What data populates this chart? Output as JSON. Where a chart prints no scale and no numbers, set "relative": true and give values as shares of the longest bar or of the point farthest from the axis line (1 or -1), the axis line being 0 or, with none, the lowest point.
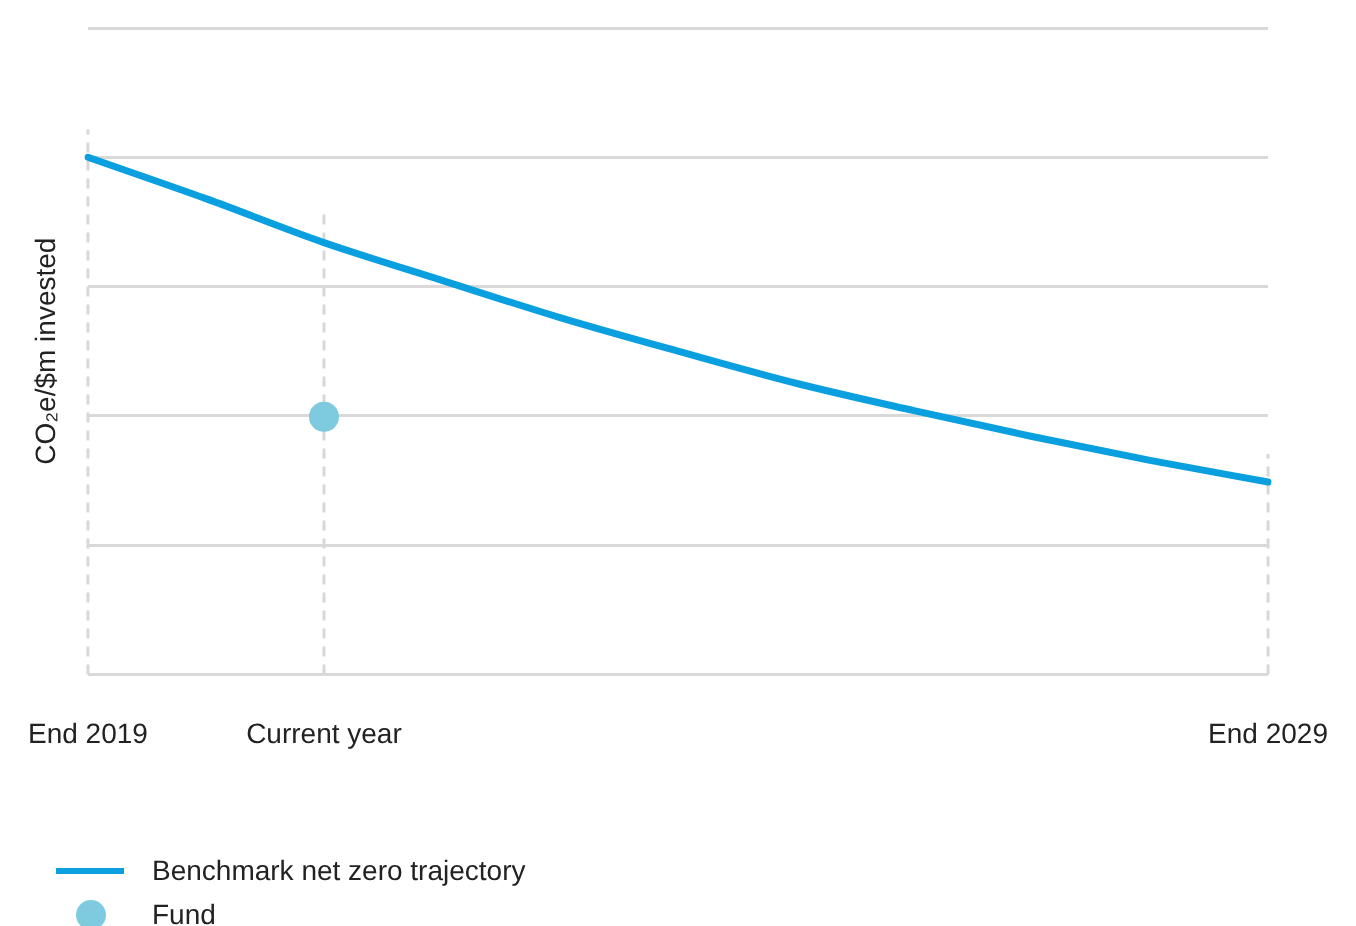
{
  "chart_data": {
    "type": "line",
    "ylabel": "CO₂e/$m invested",
    "relative": true,
    "grid": true,
    "legend": "bottom left",
    "categories": [
      "End 2019",
      null,
      "Current year",
      null,
      null,
      null,
      null,
      null,
      null,
      null,
      "End 2029"
    ],
    "series": [
      {
        "name": "Benchmark net zero trajectory",
        "color": "#0aa0e0",
        "marker": "none",
        "values": [
          1,
          0.92,
          0.835,
          0.762,
          0.69,
          0.625,
          0.563,
          0.51,
          0.46,
          0.414,
          0.372
        ]
      },
      {
        "name": "Fund",
        "type": "scatter",
        "color": "#7ecbdf",
        "marker": "circle",
        "values": [
          null,
          null,
          0.498,
          null,
          null,
          null,
          null,
          null,
          null,
          null,
          null
        ]
      }
    ]
  }
}
